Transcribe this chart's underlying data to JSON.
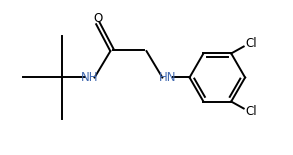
{
  "background": "#ffffff",
  "atom_color": "#000000",
  "n_color": "#4169b0",
  "o_color": "#000000",
  "cl_color": "#000000",
  "line_color": "#000000",
  "line_width": 1.4,
  "font_size": 8.5,
  "figsize": [
    2.93,
    1.55
  ],
  "dpi": 100,
  "xlim": [
    0.0,
    10.5
  ],
  "ylim": [
    1.5,
    6.5
  ]
}
